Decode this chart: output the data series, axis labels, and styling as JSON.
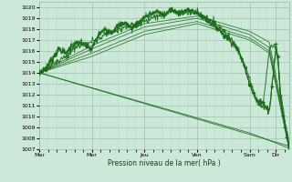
{
  "bg_color": "#cce8d8",
  "grid_color_major": "#90b8a0",
  "grid_color_minor": "#b0d0c0",
  "line_color": "#1a6b1a",
  "xlabel": "Pression niveau de la mer( hPa )",
  "ylim": [
    1007,
    1020.5
  ],
  "yticks": [
    1007,
    1008,
    1009,
    1010,
    1011,
    1012,
    1013,
    1014,
    1015,
    1016,
    1017,
    1018,
    1019,
    1020
  ],
  "xtick_labels": [
    "Mar",
    "Mer",
    "Jeu",
    "Ven",
    "Sam",
    "Dir"
  ],
  "xtick_positions": [
    0,
    48,
    96,
    144,
    192,
    216
  ],
  "xlim": [
    0,
    228
  ],
  "series": {
    "noisy_main": {
      "x": [
        0,
        6,
        12,
        18,
        24,
        30,
        36,
        42,
        48,
        54,
        60,
        66,
        72,
        78,
        84,
        90,
        96,
        102,
        108,
        114,
        120,
        126,
        132,
        138,
        144,
        150,
        156,
        162,
        168,
        174,
        180,
        186,
        192,
        198,
        204,
        210,
        216,
        218,
        220,
        222,
        224,
        226,
        228
      ],
      "y": [
        1014,
        1014.5,
        1015.3,
        1016.2,
        1015.8,
        1016.5,
        1016.8,
        1016.4,
        1016.2,
        1017.5,
        1018.0,
        1017.7,
        1018.3,
        1018.6,
        1018.1,
        1018.5,
        1019.1,
        1019.4,
        1019.6,
        1019.2,
        1019.8,
        1019.5,
        1019.6,
        1019.7,
        1019.5,
        1019.1,
        1018.6,
        1018.2,
        1017.5,
        1017.0,
        1016.3,
        1015.0,
        1013.0,
        1011.5,
        1011.2,
        1010.5,
        1016.3,
        1015.0,
        1012.0,
        1010.5,
        1009.5,
        1008.2,
        1007.0
      ]
    },
    "noisy_high": {
      "x": [
        0,
        12,
        24,
        36,
        48,
        60,
        72,
        84,
        96,
        108,
        120,
        132,
        144,
        150,
        156,
        162,
        168,
        174,
        180,
        186,
        192,
        198,
        204,
        210,
        214,
        216,
        218,
        220,
        222,
        224,
        226,
        228
      ],
      "y": [
        1014,
        1014.8,
        1015.5,
        1016.5,
        1016.8,
        1017.5,
        1018.0,
        1018.3,
        1018.8,
        1019.2,
        1019.7,
        1019.5,
        1019.5,
        1019.2,
        1018.8,
        1018.5,
        1017.8,
        1017.2,
        1016.5,
        1015.0,
        1013.5,
        1011.5,
        1010.8,
        1016.2,
        1016.5,
        1016.3,
        1015.5,
        1012.5,
        1011.0,
        1009.8,
        1008.5,
        1007.5
      ]
    },
    "smooth_a": {
      "x": [
        0,
        48,
        96,
        144,
        192,
        210,
        228
      ],
      "y": [
        1014,
        1016.5,
        1018.5,
        1019.2,
        1017.8,
        1016.8,
        1007.5
      ]
    },
    "smooth_b": {
      "x": [
        0,
        48,
        96,
        144,
        192,
        210,
        228
      ],
      "y": [
        1014,
        1016.2,
        1018.2,
        1019.0,
        1017.5,
        1016.3,
        1007.3
      ]
    },
    "smooth_c": {
      "x": [
        0,
        48,
        96,
        144,
        192,
        210,
        228
      ],
      "y": [
        1014,
        1015.8,
        1017.8,
        1018.7,
        1017.2,
        1016.0,
        1007.1
      ]
    },
    "smooth_d": {
      "x": [
        0,
        48,
        96,
        144,
        192,
        210,
        228
      ],
      "y": [
        1014,
        1015.5,
        1017.5,
        1018.5,
        1017.0,
        1015.8,
        1007.0
      ]
    },
    "diagonal1": {
      "x": [
        0,
        228
      ],
      "y": [
        1014,
        1007.3
      ]
    },
    "diagonal2": {
      "x": [
        0,
        192,
        228
      ],
      "y": [
        1014,
        1008.5,
        1007.1
      ]
    }
  }
}
